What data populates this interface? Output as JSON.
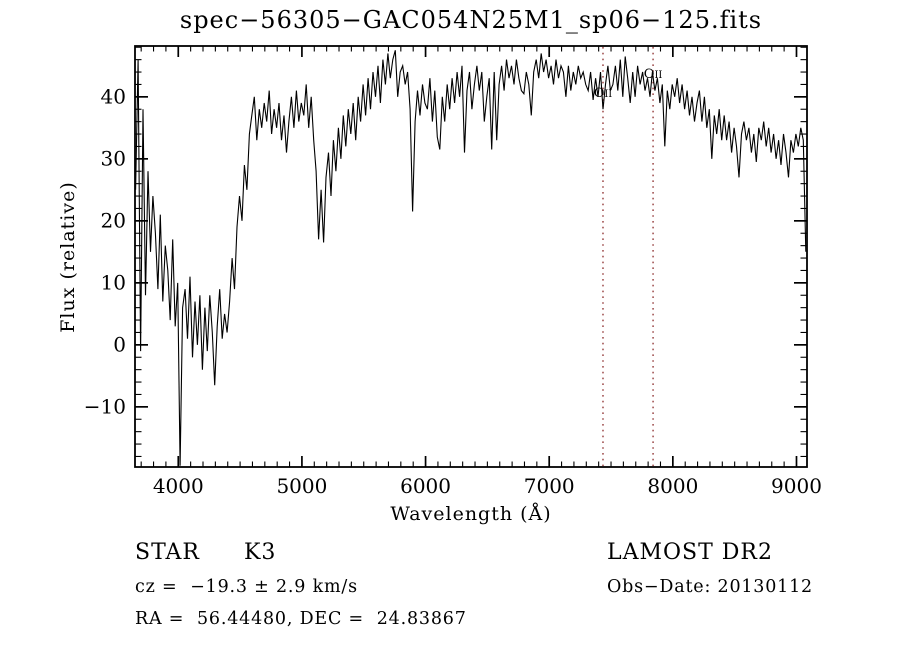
{
  "chart_data": {
    "type": "line",
    "title": "spec−56305−GAC054N25M1_sp06−125.fits",
    "xlabel": "Wavelength (Å)",
    "ylabel": "Flux (relative)",
    "xlim": [
      3650,
      9085
    ],
    "ylim": [
      -19.7,
      48.2
    ],
    "xticks": [
      4000,
      5000,
      6000,
      7000,
      8000,
      9000
    ],
    "yticks": [
      -10,
      0,
      10,
      20,
      30,
      40
    ],
    "x_minor_step": 100,
    "y_minor_step": 2,
    "grid": false,
    "legend": "none",
    "line_color": "#000000",
    "marked_lines": [
      {
        "label": "OII",
        "wavelength": 7435,
        "color": "#8b2a2a"
      },
      {
        "label": "OII",
        "wavelength": 7840,
        "color": "#8b2a2a"
      }
    ],
    "series": [
      {
        "name": "spectrum",
        "x_start": 3655,
        "x_step": 20,
        "flux": [
          25,
          46,
          -1,
          38,
          8,
          28,
          15,
          24,
          18,
          9,
          21,
          7,
          16,
          12,
          4,
          17,
          3,
          10,
          -19.5,
          6,
          9,
          1,
          11,
          -2,
          7,
          0,
          8,
          -4,
          6,
          -1,
          8,
          2,
          -6.5,
          3,
          9,
          1,
          5,
          2,
          7,
          14,
          9,
          19,
          24,
          20,
          29,
          25,
          34,
          37,
          40,
          33,
          38,
          35,
          39,
          36,
          41,
          34,
          38,
          35,
          39,
          33,
          37,
          31,
          36,
          40,
          35,
          41,
          36,
          39,
          37,
          42,
          35,
          40,
          33,
          28,
          17,
          25,
          16.5,
          27,
          31,
          24,
          33,
          28,
          35,
          30,
          37,
          32,
          38,
          34,
          39,
          33,
          40,
          36,
          42,
          37,
          43,
          38,
          44,
          40,
          45,
          39,
          46,
          42,
          47,
          43,
          46,
          47.5,
          40,
          44,
          45,
          42,
          44,
          38,
          21.5,
          36,
          41,
          37,
          42,
          39,
          38,
          43,
          36,
          41,
          33.5,
          31.5,
          40,
          36,
          42,
          38,
          43,
          39,
          44,
          40,
          45,
          31,
          41,
          44,
          38,
          42,
          45,
          41,
          44,
          36,
          40,
          43,
          31.5,
          44,
          33,
          42,
          45,
          41,
          46,
          43,
          45,
          42,
          46,
          43,
          41,
          40.5,
          44,
          42,
          37,
          44,
          46,
          43,
          47,
          44,
          46,
          43,
          45,
          42,
          46,
          43,
          45,
          44,
          40,
          45,
          41,
          44,
          42,
          45,
          43,
          44,
          42,
          41,
          44,
          39.5,
          43,
          40,
          44,
          38,
          42,
          45,
          41,
          42,
          45,
          41,
          46,
          40,
          46.5,
          43,
          39,
          44,
          40,
          45,
          42,
          44,
          41,
          43,
          40,
          44,
          41,
          43,
          39,
          42,
          32,
          41,
          38,
          42,
          40,
          43,
          39,
          42,
          38,
          41,
          37,
          40,
          36,
          39,
          41,
          36,
          40,
          35,
          38,
          30,
          37,
          34,
          38,
          33,
          37,
          33,
          36,
          31,
          35,
          32,
          27,
          34,
          36,
          33,
          35,
          31,
          34,
          29.5,
          35,
          33,
          36,
          32,
          35,
          31,
          34,
          30,
          33,
          29,
          34,
          31,
          27,
          33,
          31,
          34,
          32,
          35,
          33,
          15
        ]
      }
    ]
  },
  "annotations": {
    "object_class": "STAR",
    "subclass": "K3",
    "survey": "LAMOST DR2",
    "cz_line": "cz =  −19.3 ± 2.9 km/s",
    "obs_date": "Obs−Date: 20130112",
    "radec_line": "RA =  56.44480, DEC =  24.83867"
  }
}
